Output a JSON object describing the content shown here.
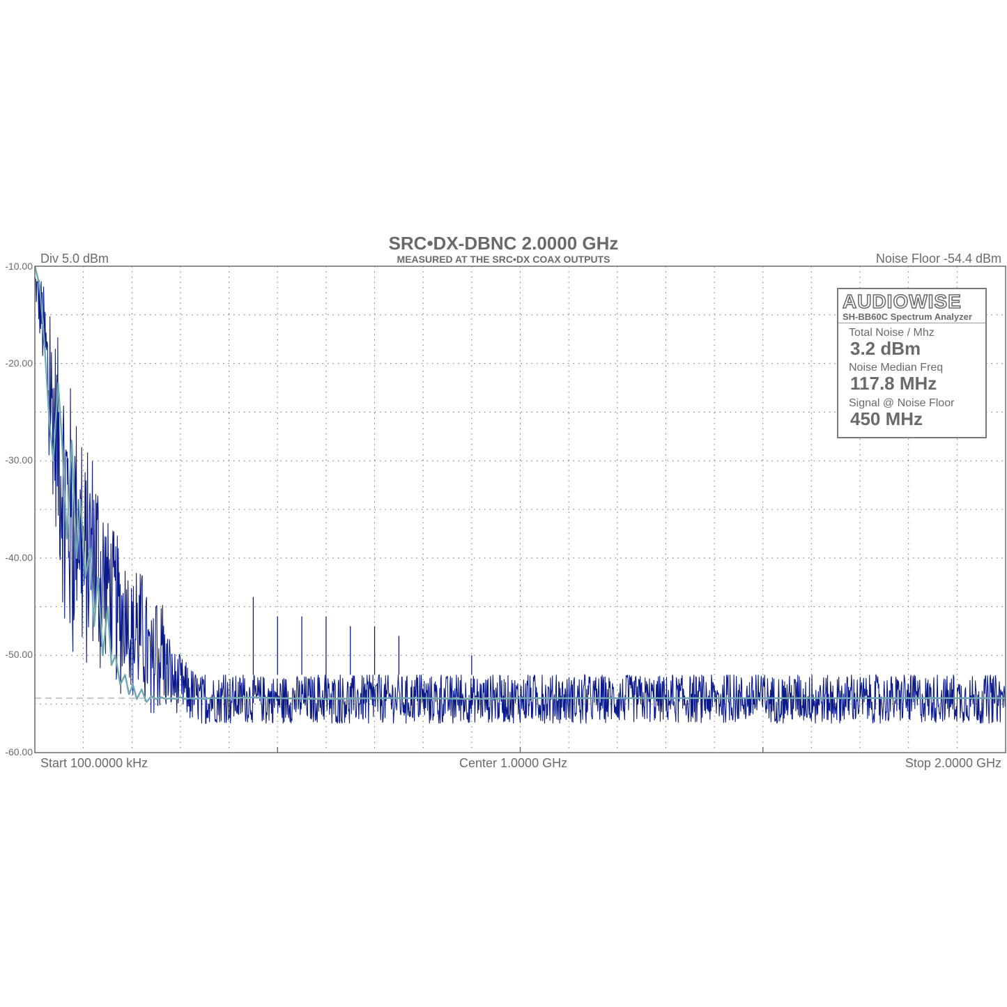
{
  "title": "SRC•DX-DBNC 2.0000 GHz",
  "subtitle": "MEASURED AT THE SRC•DX COAX OUTPUTS",
  "div_label": "Div 5.0 dBm",
  "noise_floor_label": "Noise Floor -54.4 dBm",
  "x_labels": {
    "start": "Start 100.0000 kHz",
    "center": "Center 1.0000 GHz",
    "stop": "Stop 2.0000 GHz"
  },
  "y_ticks": [
    "-10.00",
    "-20.00",
    "-30.00",
    "-40.00",
    "-50.00",
    "-60.00"
  ],
  "info_box": {
    "brand": "AUDIOWISE",
    "model": "SH-BB60C Spectrum Analyzer",
    "stats": [
      {
        "label": "Total Noise / Mhz",
        "value": "3.2 dBm"
      },
      {
        "label": "Noise Median Freq",
        "value": "117.8 MHz"
      },
      {
        "label": "Signal @ Noise Floor",
        "value": "450 MHz"
      }
    ]
  },
  "colors": {
    "trace": "#0b1a8a",
    "average": "#6fa8b0",
    "noise_floor_line": "#c8c8c8",
    "grid": "#6a6a6a",
    "text": "#6a6a6a"
  },
  "chart_data": {
    "type": "line",
    "xlim_mhz": [
      0.1,
      2000
    ],
    "ylim_dbm": [
      -60,
      -10
    ],
    "y_div_dbm": 5,
    "noise_floor_dbm": -54.4,
    "grid": true,
    "series": [
      {
        "role": "trace",
        "x_mhz": [
          0,
          15,
          30,
          45,
          55,
          75,
          90,
          100,
          120,
          140,
          150,
          175,
          190,
          200,
          220,
          240,
          260,
          280,
          300,
          320,
          340,
          360,
          380,
          400,
          430,
          460,
          500,
          600,
          800,
          1000,
          1200,
          1400,
          1600,
          1800,
          2000
        ],
        "envelope_high_dbm": [
          -10,
          -11,
          -15,
          -17,
          -18,
          -22,
          -26,
          -30,
          -28,
          -32,
          -36,
          -38,
          -40,
          -42,
          -41,
          -46,
          -44,
          -49,
          -50,
          -51,
          -52,
          -52,
          -52,
          -52,
          -52,
          -52,
          -52,
          -52,
          -52,
          -52,
          -52,
          -52,
          -52,
          -52,
          -52
        ],
        "envelope_low_dbm": [
          -13,
          -20,
          -30,
          -38,
          -44,
          -51,
          -45,
          -53,
          -49,
          -54,
          -48,
          -55,
          -50,
          -55,
          -54,
          -56,
          -56,
          -56,
          -56,
          -57,
          -57,
          -57,
          -57,
          -57,
          -57,
          -57,
          -57,
          -57,
          -57,
          -57,
          -57,
          -57,
          -57,
          -57,
          -57
        ],
        "spurs": [
          {
            "x_mhz": 450,
            "dbm": -44
          },
          {
            "x_mhz": 500,
            "dbm": -46
          },
          {
            "x_mhz": 550,
            "dbm": -46
          },
          {
            "x_mhz": 600,
            "dbm": -46
          },
          {
            "x_mhz": 650,
            "dbm": -47
          },
          {
            "x_mhz": 700,
            "dbm": -47
          },
          {
            "x_mhz": 750,
            "dbm": -48
          },
          {
            "x_mhz": 900,
            "dbm": -50
          }
        ]
      },
      {
        "role": "average",
        "x_mhz": [
          0,
          10,
          20,
          30,
          38,
          48,
          56,
          66,
          76,
          86,
          94,
          104,
          114,
          122,
          130,
          140,
          150,
          158,
          166,
          176,
          186,
          194,
          202,
          210,
          220,
          230,
          240,
          250,
          260,
          270,
          280,
          290,
          300,
          310,
          320,
          330,
          340,
          350,
          360,
          380,
          400,
          450,
          500,
          600,
          700,
          800,
          900,
          1000,
          1200,
          1400,
          1600,
          1800,
          2000
        ],
        "y_dbm": [
          -10,
          -12,
          -18,
          -26,
          -30,
          -22,
          -28,
          -38,
          -28,
          -40,
          -34,
          -42,
          -39,
          -47,
          -42,
          -50,
          -45,
          -51,
          -50,
          -53,
          -52,
          -54,
          -53,
          -54.5,
          -53.5,
          -54.8,
          -54.2,
          -54.5,
          -54.3,
          -54.5,
          -54.4,
          -54.5,
          -54.3,
          -54.5,
          -54.4,
          -54.5,
          -54.4,
          -54.5,
          -54.4,
          -54.4,
          -54.4,
          -54.3,
          -54.4,
          -54.5,
          -54.4,
          -54.4,
          -54.5,
          -54.4,
          -54.4,
          -54.4,
          -54.4,
          -54.4,
          -54.4
        ]
      }
    ]
  }
}
